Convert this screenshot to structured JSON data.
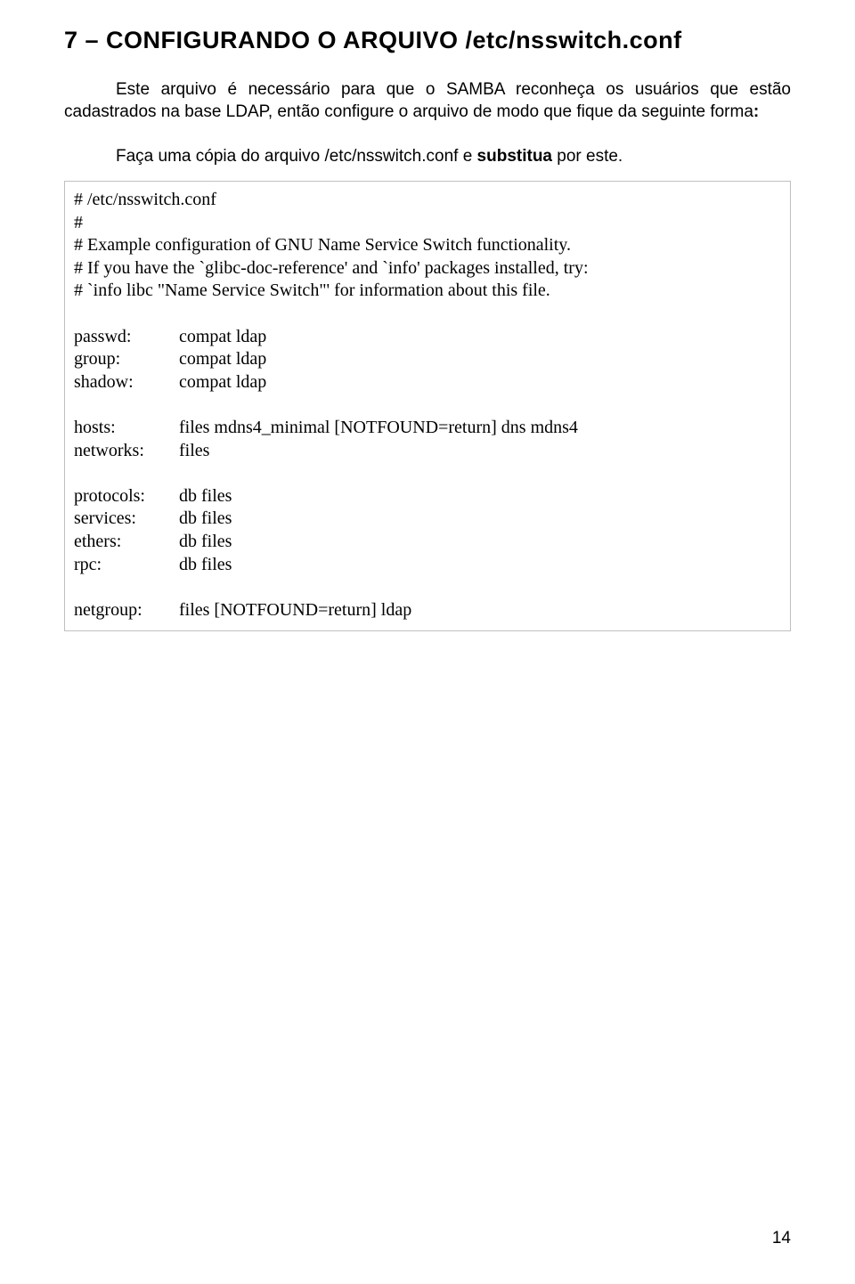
{
  "heading": "7 – CONFIGURANDO O ARQUIVO /etc/nsswitch.conf",
  "intro_html": "Este arquivo é necessário para que o SAMBA reconheça os usuários que estão cadastrados na base LDAP, então configure o arquivo de modo que fique da seguinte forma<strong>:</strong>",
  "copy_html": "Faça uma cópia do arquivo /etc/nsswitch.conf e <strong>substitua</strong> por este.",
  "config": {
    "comments": [
      "# /etc/nsswitch.conf",
      "#",
      "# Example configuration of GNU Name Service Switch functionality.",
      "# If you have the `glibc-doc-reference' and `info' packages installed, try:",
      "# `info libc \"Name Service Switch\"' for information about this file."
    ],
    "block1": [
      {
        "key": "passwd:",
        "val": "compat ldap"
      },
      {
        "key": "group:",
        "val": "compat ldap"
      },
      {
        "key": "shadow:",
        "val": "compat ldap"
      }
    ],
    "block2": [
      {
        "key": "hosts:",
        "val": "files mdns4_minimal [NOTFOUND=return] dns mdns4"
      },
      {
        "key": "networks:",
        "val": "files"
      }
    ],
    "block3": [
      {
        "key": "protocols:",
        "val": "db files"
      },
      {
        "key": "services:",
        "val": "db files"
      },
      {
        "key": "ethers:",
        "val": "db files"
      },
      {
        "key": "rpc:",
        "val": "db files"
      }
    ],
    "block4": [
      {
        "key": "netgroup:",
        "val": "files [NOTFOUND=return] ldap"
      }
    ]
  },
  "page_number": "14"
}
